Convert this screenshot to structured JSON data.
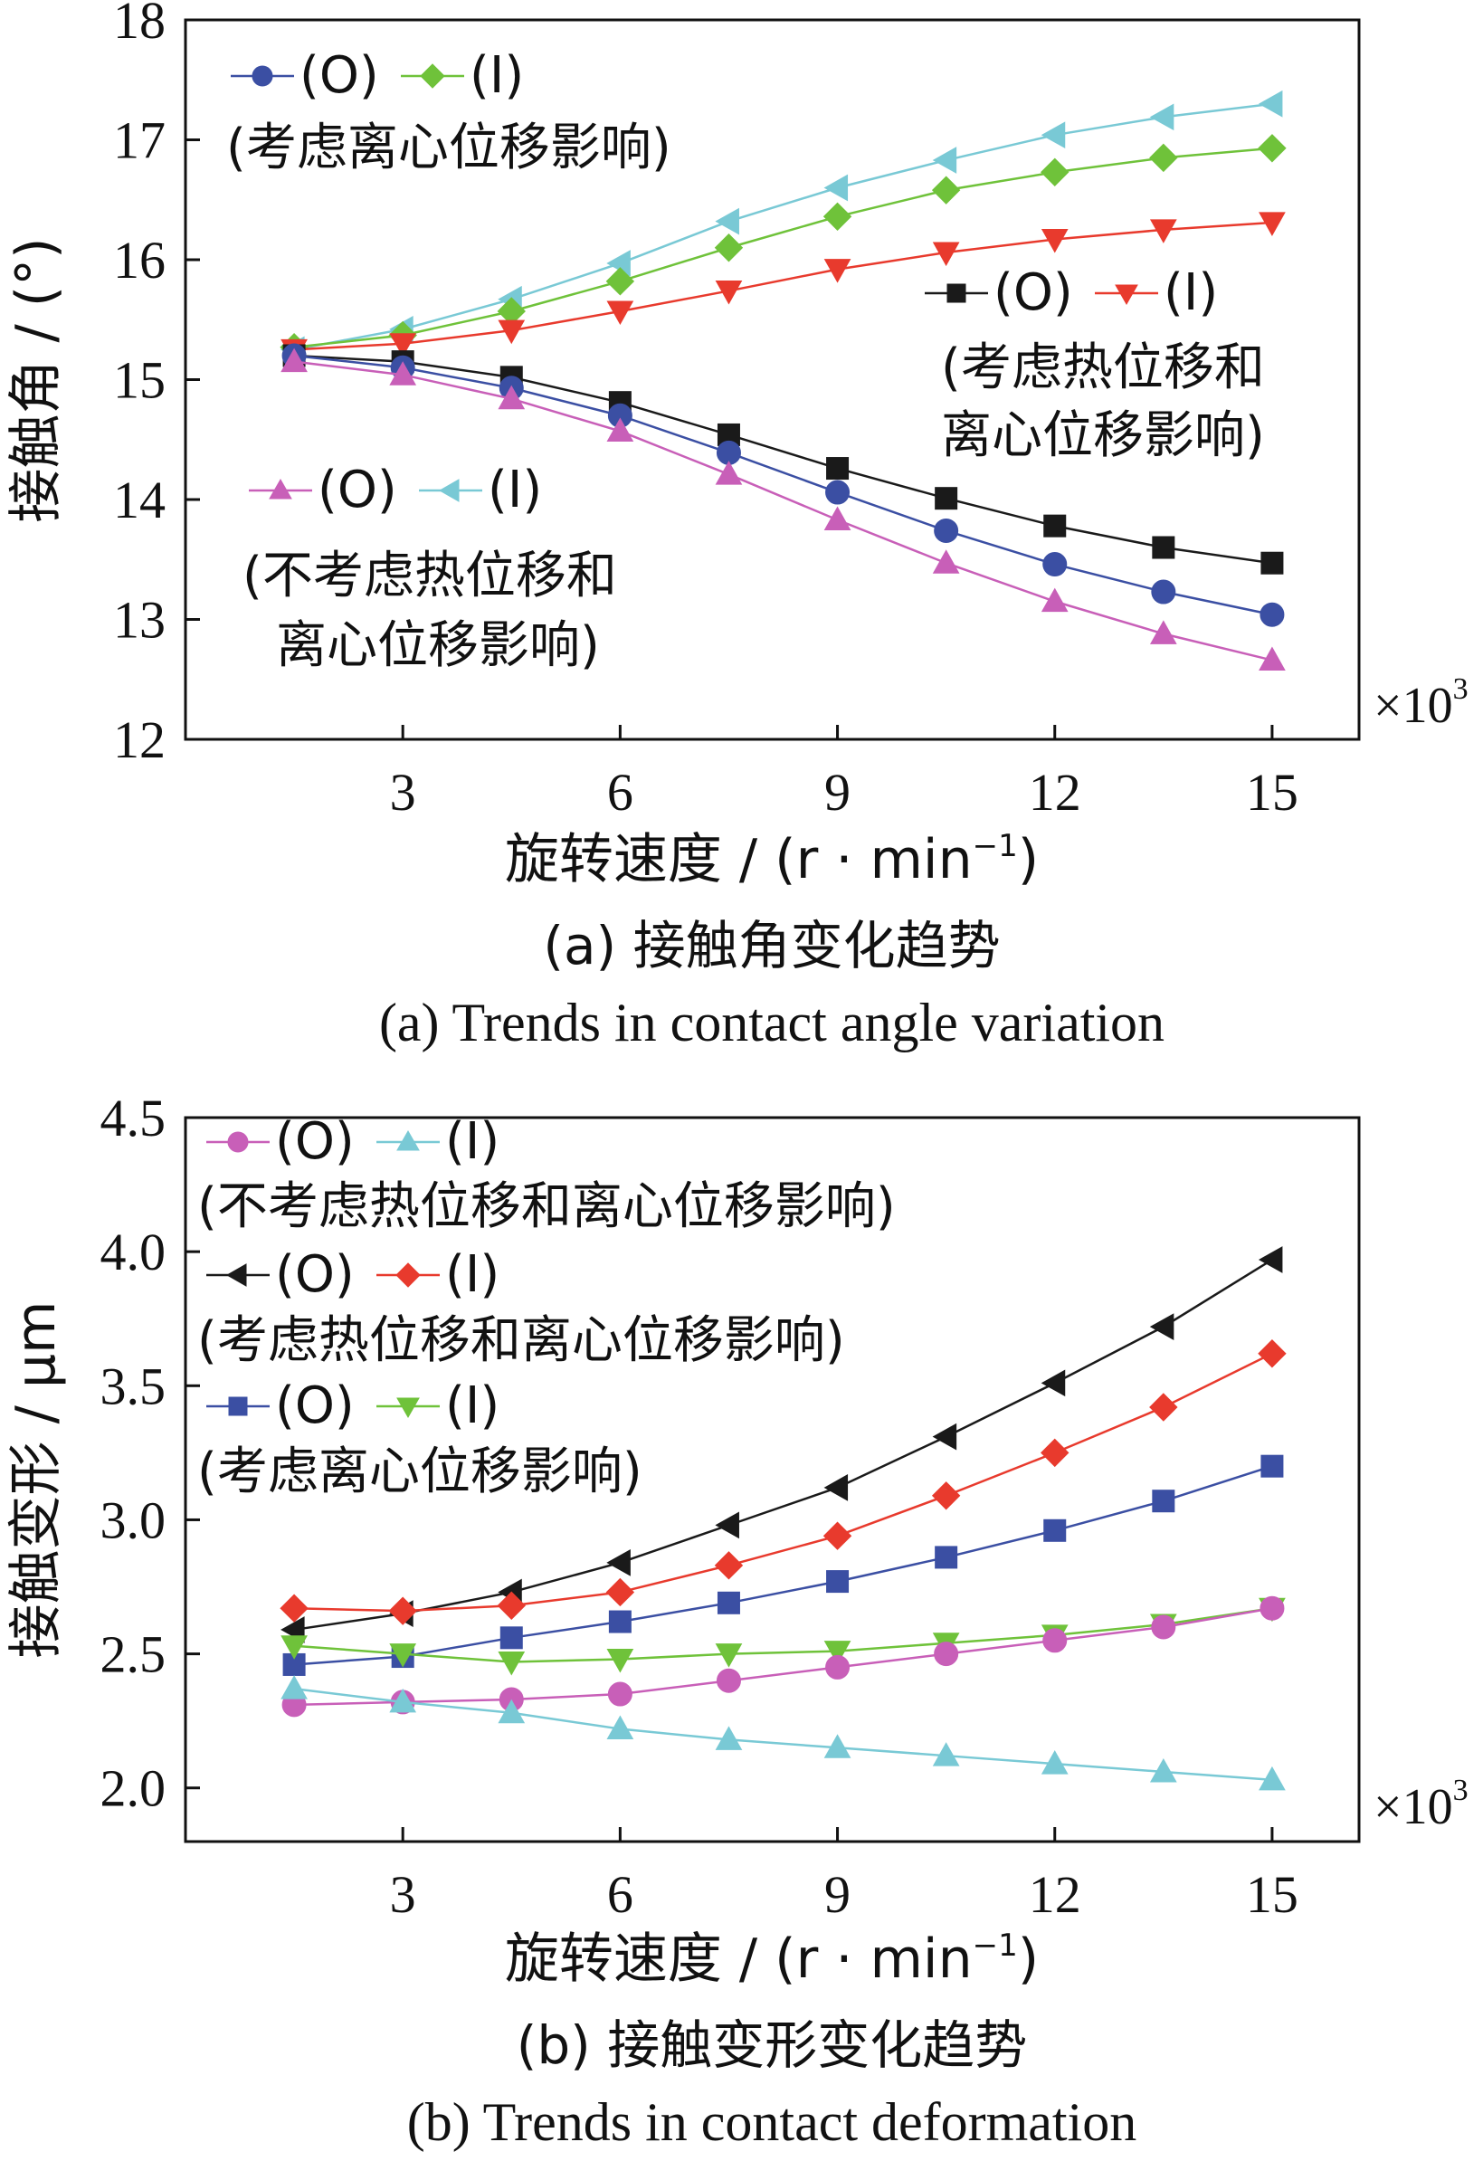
{
  "colors": {
    "O_none": "#c85fb8",
    "I_none": "#79c9d5",
    "O_both": "#1a1a1a",
    "I_both": "#e83a2d",
    "O_cent": "#3b4fa3",
    "I_cent": "#6fc23a",
    "axis": "#111111"
  },
  "x_values": [
    1.5,
    3,
    4.5,
    6,
    7.5,
    9,
    10.5,
    12,
    13.5,
    15
  ],
  "multiplier_label": "×10",
  "multiplier_exp": "3",
  "chart_data": [
    {
      "type": "line",
      "caption_zh": "(a)  接触角变化趋势",
      "caption_en": "(a)  Trends in contact angle variation",
      "xlabel": "旋转速度 / (r · min",
      "xlabel_sup": "−1",
      "xlabel_end": ")",
      "ylabel": "接触角 / (°)",
      "xlim": [
        0,
        16.2
      ],
      "ylim": [
        12,
        18
      ],
      "xticks": [
        3,
        6,
        9,
        12,
        15
      ],
      "yticks": [
        12,
        13,
        14,
        15,
        16,
        17,
        18
      ],
      "ytick_labels": [
        "12",
        "13",
        "14",
        "15",
        "16",
        "17",
        "18"
      ],
      "legend": [
        {
          "line1_a": "(O)",
          "line1_b": "(I)",
          "line2": "(考虑离心位移影响)",
          "line3": "",
          "sym_a": "O_cent",
          "sym_b": "I_cent"
        },
        {
          "line1_a": "(O)",
          "line1_b": "(I)",
          "line2": "(考虑热位移和",
          "line3": "离心位移影响)",
          "sym_a": "O_both",
          "sym_b": "I_both"
        },
        {
          "line1_a": "(O)",
          "line1_b": "(I)",
          "line2": "(不考虑热位移和",
          "line3": "离心位移影响)",
          "sym_a": "O_none",
          "sym_b": "I_none"
        }
      ],
      "series": [
        {
          "key": "I_none",
          "marker": "triangle-left",
          "values": [
            15.25,
            15.42,
            15.67,
            15.97,
            16.32,
            16.6,
            16.83,
            17.04,
            17.19,
            17.3
          ]
        },
        {
          "key": "I_cent",
          "marker": "diamond",
          "values": [
            15.27,
            15.37,
            15.57,
            15.82,
            16.1,
            16.36,
            16.58,
            16.73,
            16.85,
            16.93
          ]
        },
        {
          "key": "I_both",
          "marker": "triangle-down",
          "values": [
            15.25,
            15.3,
            15.41,
            15.57,
            15.74,
            15.92,
            16.06,
            16.17,
            16.25,
            16.31
          ]
        },
        {
          "key": "O_both",
          "marker": "square",
          "values": [
            15.2,
            15.15,
            15.02,
            14.81,
            14.54,
            14.26,
            14.01,
            13.78,
            13.6,
            13.47
          ]
        },
        {
          "key": "O_cent",
          "marker": "circle",
          "values": [
            15.2,
            15.1,
            14.93,
            14.7,
            14.39,
            14.06,
            13.74,
            13.46,
            13.23,
            13.04
          ]
        },
        {
          "key": "O_none",
          "marker": "triangle-up",
          "values": [
            15.15,
            15.04,
            14.84,
            14.57,
            14.21,
            13.83,
            13.47,
            13.15,
            12.88,
            12.66
          ]
        }
      ]
    },
    {
      "type": "line",
      "caption_zh": "(b)  接触变形变化趋势",
      "caption_en": "(b)  Trends in contact deformation",
      "xlabel": "旋转速度 / (r · min",
      "xlabel_sup": "−1",
      "xlabel_end": ")",
      "ylabel": "接触变形 / µm",
      "xlim": [
        0,
        16.2
      ],
      "ylim": [
        1.8,
        4.5
      ],
      "xticks": [
        3,
        6,
        9,
        12,
        15
      ],
      "yticks": [
        2.0,
        2.5,
        3.0,
        3.5,
        4.0,
        4.5
      ],
      "ytick_labels": [
        "2.0",
        "2.5",
        "3.0",
        "3.5",
        "4.0",
        "4.5"
      ],
      "legend": [
        {
          "line1_a": "(O)",
          "line1_b": "(I)",
          "line2": "(不考虑热位移和离心位移影响)",
          "line3": "",
          "sym_a": "O_none",
          "sym_b": "I_none"
        },
        {
          "line1_a": "(O)",
          "line1_b": "(I)",
          "line2": "(考虑热位移和离心位移影响)",
          "line3": "",
          "sym_a": "O_both",
          "sym_b": "I_both"
        },
        {
          "line1_a": "(O)",
          "line1_b": "(I)",
          "line2": "(考虑离心位移影响)",
          "line3": "",
          "sym_a": "O_cent",
          "sym_b": "I_cent"
        }
      ],
      "series": [
        {
          "key": "O_both",
          "marker": "triangle-left",
          "values": [
            2.59,
            2.65,
            2.73,
            2.84,
            2.98,
            3.12,
            3.31,
            3.51,
            3.72,
            3.97
          ]
        },
        {
          "key": "I_both",
          "marker": "diamond",
          "values": [
            2.67,
            2.66,
            2.68,
            2.73,
            2.83,
            2.94,
            3.09,
            3.25,
            3.42,
            3.62
          ]
        },
        {
          "key": "O_cent",
          "marker": "square",
          "values": [
            2.46,
            2.49,
            2.56,
            2.62,
            2.69,
            2.77,
            2.86,
            2.96,
            3.07,
            3.2
          ]
        },
        {
          "key": "I_cent",
          "marker": "triangle-down",
          "values": [
            2.53,
            2.5,
            2.47,
            2.48,
            2.5,
            2.51,
            2.54,
            2.57,
            2.61,
            2.67
          ]
        },
        {
          "key": "O_none",
          "marker": "circle",
          "values": [
            2.31,
            2.32,
            2.33,
            2.35,
            2.4,
            2.45,
            2.5,
            2.55,
            2.6,
            2.67
          ]
        },
        {
          "key": "I_none",
          "marker": "triangle-up",
          "values": [
            2.37,
            2.32,
            2.28,
            2.22,
            2.18,
            2.15,
            2.12,
            2.09,
            2.06,
            2.03
          ]
        }
      ]
    }
  ]
}
